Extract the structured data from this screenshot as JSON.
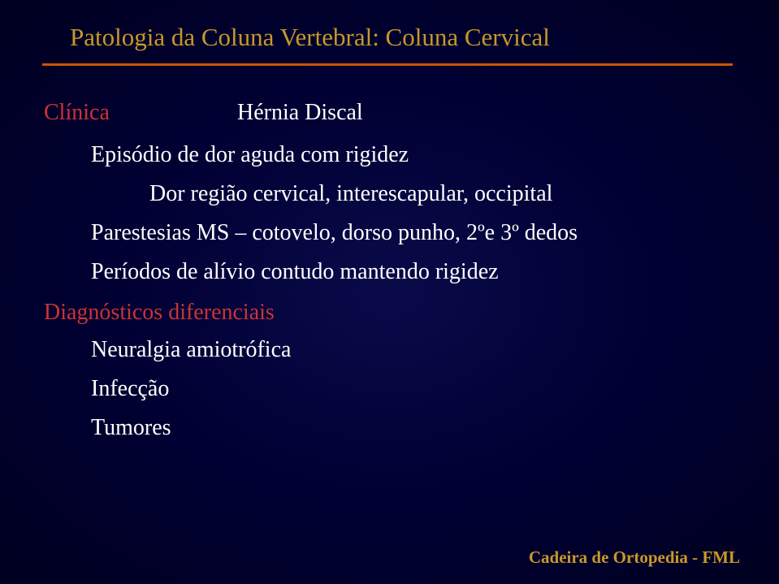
{
  "colors": {
    "background_center": "#0a0a4a",
    "background_mid": "#000033",
    "background_edge": "#000020",
    "title_color": "#c89828",
    "divider_color": "#cc5500",
    "section_label_color": "#cc3333",
    "body_text_color": "#ffffff",
    "footer_color": "#c89828"
  },
  "typography": {
    "title_fontsize": 31,
    "body_fontsize": 28,
    "footer_fontsize": 21,
    "font_family": "Georgia, Times New Roman, serif"
  },
  "title": "Patologia da Coluna Vertebral: Coluna Cervical",
  "subtitle": "Hérnia Discal",
  "section1": {
    "label": "Clínica",
    "items": [
      {
        "level": 1,
        "text": "Episódio de dor aguda com rigidez"
      },
      {
        "level": 2,
        "text": "Dor região cervical, interescapular, occipital"
      },
      {
        "level": 1,
        "text": "Parestesias MS – cotovelo, dorso punho, 2ºe 3º dedos"
      },
      {
        "level": 1,
        "text": "Períodos de alívio contudo mantendo rigidez"
      }
    ]
  },
  "section2": {
    "label": "Diagnósticos diferenciais",
    "items": [
      {
        "level": 1,
        "text": "Neuralgia amiotrófica"
      },
      {
        "level": 1,
        "text": "Infecção"
      },
      {
        "level": 1,
        "text": "Tumores"
      }
    ]
  },
  "footer": "Cadeira de Ortopedia - FML"
}
